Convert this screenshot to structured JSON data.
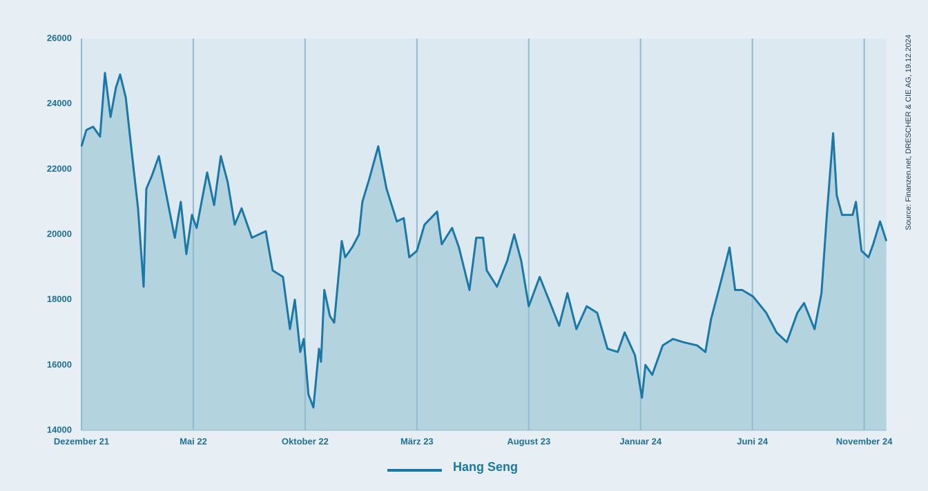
{
  "chart_data": {
    "type": "area",
    "source": "Source: Finanzen.net, DRESCHER & CIE AG, 19.12.2024",
    "series": [
      {
        "name": "Hang Seng",
        "color": "#1a78a8",
        "fill": "#b3d3df",
        "x": [
          0,
          0.22,
          0.52,
          0.83,
          1.05,
          1.3,
          1.54,
          1.73,
          1.98,
          2.22,
          2.53,
          2.78,
          2.9,
          3.15,
          3.46,
          3.77,
          4.17,
          4.44,
          4.69,
          4.94,
          5.15,
          5.62,
          5.93,
          6.23,
          6.54,
          6.85,
          7.16,
          7.62,
          8.24,
          8.55,
          9.01,
          9.32,
          9.54,
          9.78,
          9.94,
          10.15,
          10.37,
          10.62,
          10.71,
          10.86,
          11.11,
          11.3,
          11.64,
          11.79,
          12.1,
          12.41,
          12.56,
          12.87,
          13.27,
          13.64,
          14.1,
          14.41,
          14.66,
          15.0,
          15.34,
          15.9,
          16.11,
          16.57,
          16.88,
          17.35,
          17.65,
          17.96,
          18.12,
          18.58,
          19.04,
          19.35,
          19.66,
          20.0,
          20.49,
          20.9,
          21.36,
          21.73,
          22.13,
          22.59,
          23.06,
          23.52,
          23.98,
          24.29,
          24.75,
          25.06,
          25.22,
          25.52,
          25.99,
          26.45,
          26.91,
          27.53,
          27.9,
          28.15,
          28.61,
          28.98,
          29.23,
          29.54,
          30.03,
          30.62,
          31.08,
          31.54,
          32.01,
          32.31,
          32.78,
          33.09,
          33.33,
          33.61,
          33.77,
          34.01,
          34.48,
          34.63,
          34.88,
          35.19,
          35.4,
          35.71,
          35.99
        ],
        "values": [
          22700,
          23200,
          23300,
          23000,
          24950,
          23600,
          24500,
          24900,
          24200,
          22700,
          20800,
          18400,
          21400,
          21800,
          22400,
          21300,
          19900,
          21000,
          19400,
          20600,
          20200,
          21900,
          20900,
          22400,
          21600,
          20300,
          20800,
          19900,
          20100,
          18900,
          18700,
          17100,
          18000,
          16400,
          16800,
          15100,
          14700,
          16500,
          16100,
          18300,
          17500,
          17300,
          19800,
          19300,
          19600,
          20000,
          21000,
          21700,
          22700,
          21400,
          20400,
          20500,
          19300,
          19500,
          20300,
          20700,
          19700,
          20200,
          19600,
          18300,
          19900,
          19900,
          18900,
          18400,
          19200,
          20000,
          19200,
          17800,
          18700,
          18000,
          17200,
          18200,
          17100,
          17800,
          17600,
          16500,
          16400,
          17000,
          16300,
          15000,
          16000,
          15700,
          16600,
          16800,
          16700,
          16600,
          16400,
          17400,
          18600,
          19600,
          18300,
          18300,
          18100,
          17600,
          17000,
          16700,
          17600,
          17900,
          17100,
          18200,
          20600,
          23100,
          21200,
          20600,
          20600,
          21000,
          19500,
          19300,
          19700,
          20400,
          19800
        ]
      }
    ],
    "xlim": [
      0,
      36
    ],
    "xticks": [
      {
        "value": 0,
        "label": "Dezember 21"
      },
      {
        "value": 5,
        "label": "Mai 22"
      },
      {
        "value": 10,
        "label": "Oktober 22"
      },
      {
        "value": 15,
        "label": "März 23"
      },
      {
        "value": 20,
        "label": "August 23"
      },
      {
        "value": 25,
        "label": "Januar 24"
      },
      {
        "value": 30,
        "label": "Juni 24"
      },
      {
        "value": 35,
        "label": "November 24"
      }
    ],
    "ylim": [
      14000,
      26000
    ],
    "yticks": [
      14000,
      16000,
      18000,
      20000,
      22000,
      24000,
      26000
    ],
    "grid": true,
    "legend": "bottom"
  }
}
